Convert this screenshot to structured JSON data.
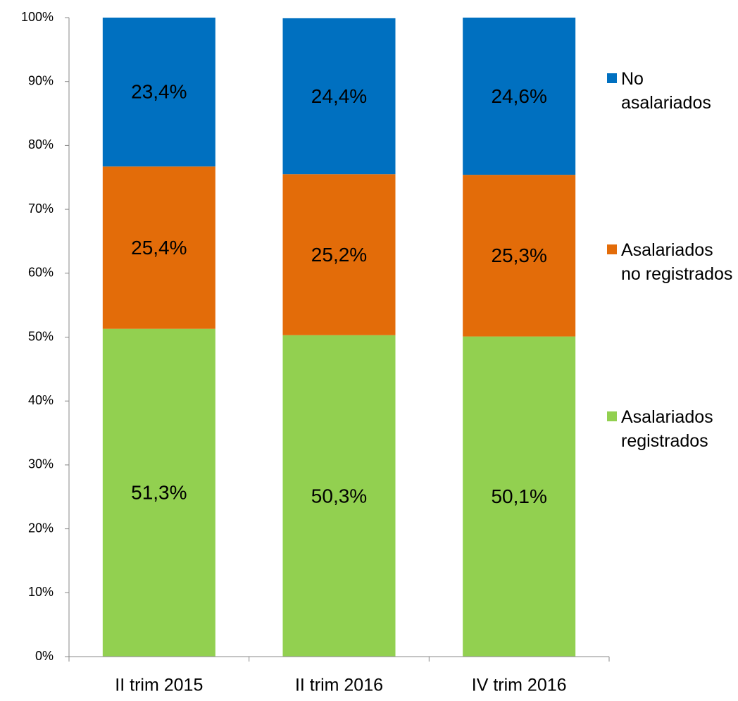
{
  "chart_data": {
    "type": "stacked_bar",
    "categories": [
      "II trim 2015",
      "II trim 2016",
      "IV trim 2016"
    ],
    "series": [
      {
        "name": "Asalariados registrados",
        "color": "#92d050",
        "values": [
          51.3,
          50.3,
          50.1
        ],
        "value_labels": [
          "51,3%",
          "50,3%",
          "50,1%"
        ]
      },
      {
        "name": "Asalariados no registrados",
        "color": "#e36c09",
        "values": [
          25.4,
          25.2,
          25.3
        ],
        "value_labels": [
          "25,4%",
          "25,2%",
          "25,3%"
        ]
      },
      {
        "name": "No asalariados",
        "color": "#0070c0",
        "values": [
          23.4,
          24.4,
          24.6
        ],
        "value_labels": [
          "23,4%",
          "24,4%",
          "24,6%"
        ]
      }
    ],
    "ylim": [
      0,
      100
    ],
    "yticks": [
      {
        "value": 0,
        "label": "0%"
      },
      {
        "value": 10,
        "label": "10%"
      },
      {
        "value": 20,
        "label": "20%"
      },
      {
        "value": 30,
        "label": "30%"
      },
      {
        "value": 40,
        "label": "40%"
      },
      {
        "value": 50,
        "label": "50%"
      },
      {
        "value": 60,
        "label": "60%"
      },
      {
        "value": 70,
        "label": "70%"
      },
      {
        "value": 80,
        "label": "80%"
      },
      {
        "value": 90,
        "label": "90%"
      },
      {
        "value": 100,
        "label": "100%"
      }
    ],
    "grid": false,
    "legend": "right"
  }
}
